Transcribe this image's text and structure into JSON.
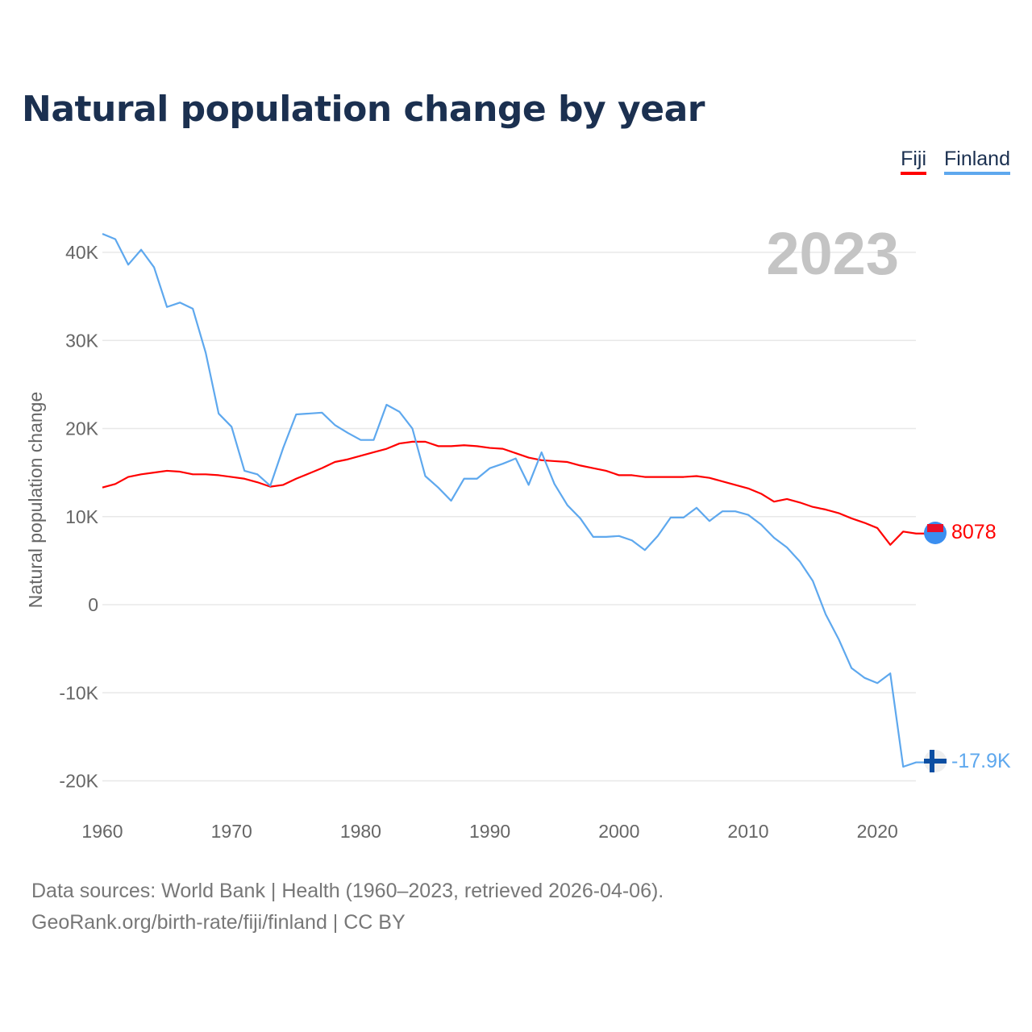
{
  "title": "Natural population change by year",
  "legend": [
    {
      "label": "Fiji",
      "color": "#ff0000"
    },
    {
      "label": "Finland",
      "color": "#5ea8ee"
    }
  ],
  "year_badge": "2023",
  "end_labels": {
    "fiji": "8078",
    "finland": "-17.9K"
  },
  "source_lines": [
    "Data sources: World Bank | Health (1960–2023, retrieved 2026-04-06).",
    "GeoRank.org/birth-rate/fiji/finland | CC BY"
  ],
  "chart_data": {
    "type": "line",
    "title": "Natural population change by year",
    "xlabel": "",
    "ylabel": "Natural population change",
    "xlim": [
      1960,
      2023
    ],
    "ylim": [
      -22000,
      43000
    ],
    "grid": true,
    "legend_position": "top-right",
    "x_ticks": [
      1960,
      1970,
      1980,
      1990,
      2000,
      2010,
      2020
    ],
    "x_tick_labels": [
      "1960",
      "1970",
      "1980",
      "1990",
      "2000",
      "2010",
      "2020"
    ],
    "y_ticks": [
      -20000,
      -10000,
      0,
      10000,
      20000,
      30000,
      40000
    ],
    "y_tick_labels": [
      "-20K",
      "-10K",
      "0",
      "10K",
      "20K",
      "30K",
      "40K"
    ],
    "x": [
      1960,
      1961,
      1962,
      1963,
      1964,
      1965,
      1966,
      1967,
      1968,
      1969,
      1970,
      1971,
      1972,
      1973,
      1974,
      1975,
      1976,
      1977,
      1978,
      1979,
      1980,
      1981,
      1982,
      1983,
      1984,
      1985,
      1986,
      1987,
      1988,
      1989,
      1990,
      1991,
      1992,
      1993,
      1994,
      1995,
      1996,
      1997,
      1998,
      1999,
      2000,
      2001,
      2002,
      2003,
      2004,
      2005,
      2006,
      2007,
      2008,
      2009,
      2010,
      2011,
      2012,
      2013,
      2014,
      2015,
      2016,
      2017,
      2018,
      2019,
      2020,
      2021,
      2022,
      2023
    ],
    "series": [
      {
        "name": "Fiji",
        "color": "#ff0000",
        "values": [
          13300,
          13700,
          14500,
          14800,
          15000,
          15200,
          15100,
          14800,
          14800,
          14700,
          14500,
          14300,
          13900,
          13400,
          13600,
          14300,
          14900,
          15500,
          16200,
          16500,
          16900,
          17300,
          17700,
          18300,
          18500,
          18500,
          18000,
          18000,
          18100,
          18000,
          17800,
          17700,
          17200,
          16700,
          16400,
          16300,
          16200,
          15800,
          15500,
          15200,
          14700,
          14700,
          14500,
          14500,
          14500,
          14500,
          14600,
          14400,
          14000,
          13600,
          13200,
          12600,
          11700,
          12000,
          11600,
          11100,
          10800,
          10400,
          9800,
          9300,
          8700,
          6800,
          8300,
          8078
        ]
      },
      {
        "name": "Finland",
        "color": "#5ea8ee",
        "values": [
          42100,
          41500,
          38600,
          40300,
          38300,
          33800,
          34300,
          33600,
          28600,
          21700,
          20200,
          15200,
          14800,
          13500,
          17800,
          21600,
          21700,
          21800,
          20400,
          19500,
          18700,
          18700,
          22700,
          21900,
          20000,
          14600,
          13300,
          11800,
          14300,
          14300,
          15500,
          16000,
          16600,
          13600,
          17300,
          13700,
          11300,
          9800,
          7700,
          7700,
          7800,
          7300,
          6200,
          7800,
          9900,
          9900,
          11000,
          9500,
          10600,
          10600,
          10200,
          9100,
          7600,
          6500,
          4900,
          2700,
          -1100,
          -3900,
          -7200,
          -8300,
          -8900,
          -7800,
          -18400,
          -17900
        ]
      }
    ]
  }
}
